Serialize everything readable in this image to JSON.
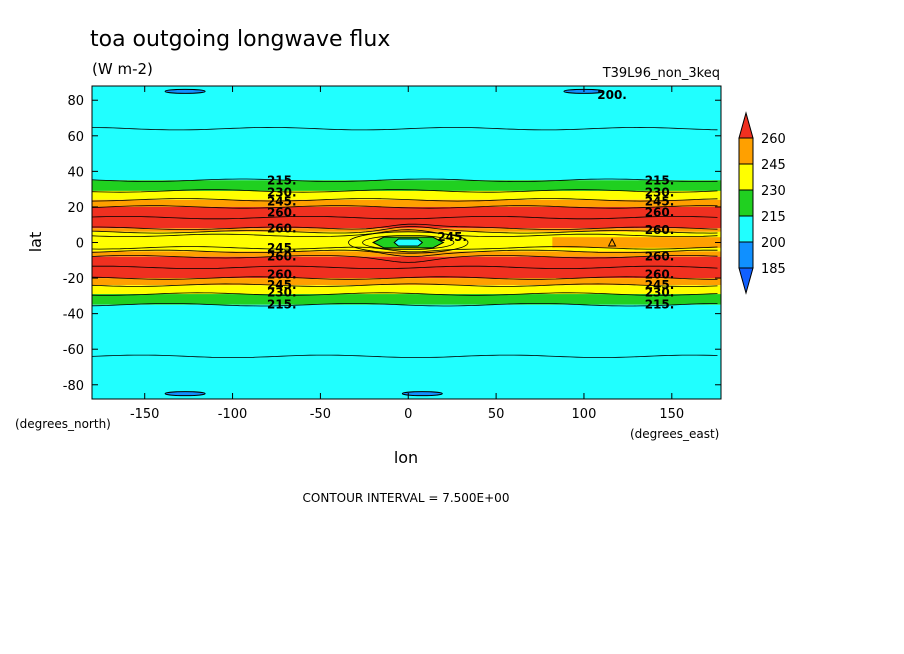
{
  "chart_data": {
    "type": "heatmap",
    "title": "toa outgoing longwave flux",
    "units": "(W m-2)",
    "run_label": "T39L96_non_3keq",
    "xlabel": "lon",
    "ylabel": "lat",
    "x_unit_label": "(degrees_east)",
    "y_unit_label": "(degrees_north)",
    "xlim": [
      -180,
      178
    ],
    "ylim": [
      -88,
      88
    ],
    "x_ticks": [
      -150,
      -100,
      -50,
      0,
      50,
      100,
      150
    ],
    "y_ticks": [
      -80,
      -60,
      -40,
      -20,
      0,
      20,
      40,
      60,
      80
    ],
    "contour_interval_text": "CONTOUR INTERVAL = 7.500E+00",
    "colorbar": {
      "labels": [
        "260",
        "245",
        "230",
        "215",
        "200",
        "185"
      ],
      "colors": [
        "#f03020",
        "#ffa000",
        "#ffff00",
        "#20d020",
        "#20ffff",
        "#1090ff",
        "#1060ff"
      ]
    },
    "zonal_bands": [
      {
        "lat_from": 88,
        "lat_to": 35,
        "range": "200-215",
        "color": "#20ffff"
      },
      {
        "lat_from": 35,
        "lat_to": 29,
        "range": "215-230",
        "color": "#20d020"
      },
      {
        "lat_from": 29,
        "lat_to": 24,
        "range": "230-245",
        "color": "#ffff00"
      },
      {
        "lat_from": 24,
        "lat_to": 20,
        "range": "245-260",
        "color": "#ffa000"
      },
      {
        "lat_from": 20,
        "lat_to": 8,
        "range": ">260",
        "color": "#f03020"
      },
      {
        "lat_from": 8,
        "lat_to": 6,
        "range": "245-260",
        "color": "#ffa000"
      },
      {
        "lat_from": 6,
        "lat_to": -5,
        "range": "230-245",
        "color": "#ffff00"
      },
      {
        "lat_from": -5,
        "lat_to": -8,
        "range": "245-260",
        "color": "#ffa000"
      },
      {
        "lat_from": -8,
        "lat_to": -20,
        "range": ">260",
        "color": "#f03020"
      },
      {
        "lat_from": -20,
        "lat_to": -24,
        "range": "245-260",
        "color": "#ffa000"
      },
      {
        "lat_from": -24,
        "lat_to": -29,
        "range": "230-245",
        "color": "#ffff00"
      },
      {
        "lat_from": -29,
        "lat_to": -35,
        "range": "215-230",
        "color": "#20d020"
      },
      {
        "lat_from": -35,
        "lat_to": -88,
        "range": "200-215",
        "color": "#20ffff"
      }
    ],
    "equatorial_features": [
      {
        "lon": 0,
        "lat": 0,
        "lon_half_width": 20,
        "lat_half_width": 3,
        "range": "215-230",
        "color": "#20d020"
      },
      {
        "lon": 0,
        "lat": 0,
        "lon_half_width": 8,
        "lat_half_width": 2,
        "range": "200-215",
        "color": "#20ffff"
      },
      {
        "lon_from": 82,
        "lon_to": 178,
        "lat_from": 3,
        "lat_to": -3,
        "range": "245-260",
        "color": "#ffa000"
      }
    ],
    "polar_features": [
      {
        "lon": -127,
        "lat": 85,
        "range": "<200"
      },
      {
        "lon": 100,
        "lat": 85,
        "range": "<200"
      },
      {
        "lon": -127,
        "lat": -85,
        "range": "<200"
      },
      {
        "lon": 8,
        "lat": -85,
        "range": "<200"
      }
    ],
    "contour_labels": [
      {
        "text": "215.",
        "lon": -72,
        "lat": 35
      },
      {
        "text": "230.",
        "lon": -72,
        "lat": 28
      },
      {
        "text": "245.",
        "lon": -72,
        "lat": 23
      },
      {
        "text": "260.",
        "lon": -72,
        "lat": 17
      },
      {
        "text": "260.",
        "lon": -72,
        "lat": 8
      },
      {
        "text": "245.",
        "lon": -72,
        "lat": -3
      },
      {
        "text": "260.",
        "lon": -72,
        "lat": -8
      },
      {
        "text": "260.",
        "lon": -72,
        "lat": -18
      },
      {
        "text": "245.",
        "lon": -72,
        "lat": -24
      },
      {
        "text": "230.",
        "lon": -72,
        "lat": -28
      },
      {
        "text": "215.",
        "lon": -72,
        "lat": -35
      },
      {
        "text": "215.",
        "lon": 143,
        "lat": 35
      },
      {
        "text": "230.",
        "lon": 143,
        "lat": 28
      },
      {
        "text": "245.",
        "lon": 143,
        "lat": 23
      },
      {
        "text": "260.",
        "lon": 143,
        "lat": 17
      },
      {
        "text": "260.",
        "lon": 143,
        "lat": 7
      },
      {
        "text": "260.",
        "lon": 143,
        "lat": -8
      },
      {
        "text": "260.",
        "lon": 143,
        "lat": -18
      },
      {
        "text": "245.",
        "lon": 143,
        "lat": -24
      },
      {
        "text": "230.",
        "lon": 143,
        "lat": -28
      },
      {
        "text": "215.",
        "lon": 143,
        "lat": -35
      },
      {
        "text": "245.",
        "lon": 25,
        "lat": 3
      },
      {
        "text": "200.",
        "lon": 116,
        "lat": 83
      }
    ]
  }
}
